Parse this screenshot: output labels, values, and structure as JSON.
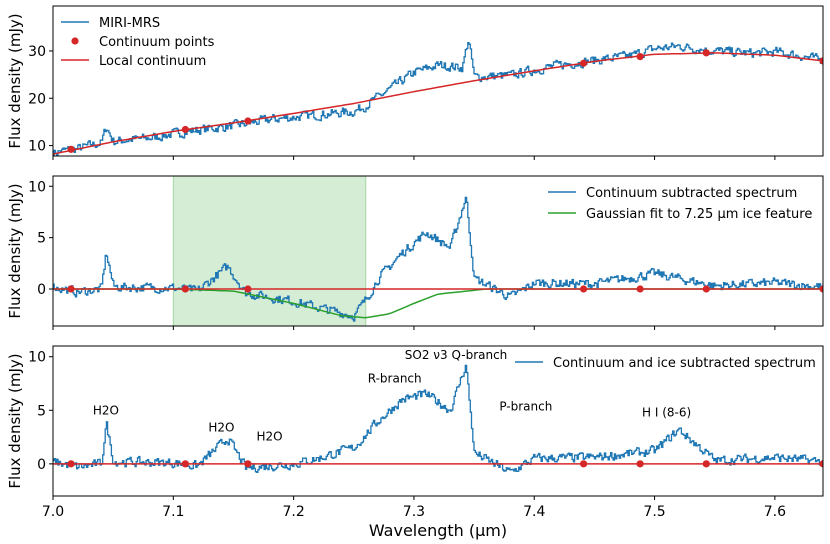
{
  "chart_data": [
    {
      "type": "line",
      "panel": "top",
      "ylabel": "Flux density (mJy)",
      "xlim": [
        7.0,
        7.64
      ],
      "ylim": [
        7.8,
        39.5
      ],
      "yticks": [
        10,
        20,
        30
      ],
      "x": [
        7.0,
        7.01,
        7.02,
        7.03,
        7.04,
        7.044,
        7.05,
        7.06,
        7.08,
        7.1,
        7.12,
        7.15,
        7.18,
        7.2,
        7.22,
        7.25,
        7.26,
        7.28,
        7.3,
        7.32,
        7.34,
        7.345,
        7.35,
        7.38,
        7.4,
        7.42,
        7.45,
        7.48,
        7.5,
        7.52,
        7.55,
        7.58,
        7.6,
        7.62,
        7.64
      ],
      "series": [
        {
          "name": "MIRI-MRS",
          "color": "#1f77b4",
          "values": [
            8.5,
            9.0,
            9.3,
            10.0,
            10.6,
            14.0,
            10.8,
            11.2,
            11.6,
            12.5,
            13.3,
            14.2,
            15.5,
            16.0,
            16.5,
            17.2,
            18.5,
            22.0,
            25.5,
            27.0,
            26.5,
            32.5,
            24.5,
            24.8,
            26.0,
            27.0,
            28.0,
            29.0,
            30.5,
            31.0,
            30.0,
            29.5,
            29.8,
            29.0,
            28.0
          ]
        },
        {
          "name": "Continuum points",
          "color": "#d62728",
          "marker": "dot",
          "x": [
            7.015,
            7.11,
            7.162,
            7.441,
            7.488,
            7.543,
            7.64
          ],
          "values": [
            9.2,
            13.4,
            15.2,
            27.4,
            28.8,
            29.6,
            27.9
          ]
        },
        {
          "name": "Local continuum",
          "color": "#d62728",
          "x": [
            7.0,
            7.05,
            7.1,
            7.15,
            7.2,
            7.25,
            7.3,
            7.35,
            7.4,
            7.45,
            7.5,
            7.55,
            7.6,
            7.64
          ],
          "values": [
            8.2,
            10.8,
            13.0,
            14.8,
            16.8,
            18.9,
            21.4,
            23.7,
            25.8,
            27.8,
            29.3,
            29.6,
            29.1,
            27.9
          ]
        }
      ],
      "legend": [
        "MIRI-MRS",
        "Continuum points",
        "Local continuum"
      ],
      "legend_position": "top-left"
    },
    {
      "type": "line",
      "panel": "middle",
      "ylabel": "Flux density (mJy)",
      "xlim": [
        7.0,
        7.64
      ],
      "ylim": [
        -3.6,
        11.0
      ],
      "yticks": [
        0,
        5,
        10
      ],
      "shaded_region": [
        7.1,
        7.26
      ],
      "x": [
        7.0,
        7.02,
        7.04,
        7.044,
        7.05,
        7.1,
        7.12,
        7.145,
        7.16,
        7.2,
        7.22,
        7.25,
        7.26,
        7.27,
        7.29,
        7.31,
        7.33,
        7.343,
        7.35,
        7.38,
        7.4,
        7.45,
        7.5,
        7.55,
        7.6,
        7.64
      ],
      "series": [
        {
          "name": "Continuum subtracted spectrum",
          "color": "#1f77b4",
          "values": [
            0.2,
            -0.3,
            0.0,
            3.6,
            0.2,
            0.1,
            -0.2,
            2.2,
            -0.4,
            -1.2,
            -1.8,
            -2.6,
            -1.0,
            1.0,
            3.5,
            5.5,
            4.0,
            9.0,
            1.0,
            -0.8,
            0.6,
            0.5,
            1.5,
            0.3,
            0.6,
            0.2
          ]
        },
        {
          "name": "Gaussian fit to 7.25 µm ice feature",
          "color": "#2ca02c",
          "x": [
            7.0,
            7.1,
            7.15,
            7.2,
            7.24,
            7.26,
            7.28,
            7.3,
            7.32,
            7.36,
            7.64
          ],
          "values": [
            0.0,
            0.0,
            -0.2,
            -1.4,
            -2.6,
            -2.8,
            -2.4,
            -1.4,
            -0.5,
            0.0,
            0.0
          ]
        },
        {
          "name": "Zero line",
          "color": "#d62728",
          "x": [
            7.0,
            7.64
          ],
          "values": [
            0,
            0
          ]
        },
        {
          "name": "Continuum points",
          "color": "#d62728",
          "marker": "dot",
          "x": [
            7.015,
            7.11,
            7.162,
            7.441,
            7.488,
            7.543,
            7.64
          ],
          "values": [
            0,
            0,
            0,
            0,
            0,
            0,
            0
          ]
        }
      ],
      "legend": [
        "Continuum subtracted spectrum",
        "Gaussian fit to 7.25 µm ice feature"
      ],
      "legend_position": "top-right"
    },
    {
      "type": "line",
      "panel": "bottom",
      "ylabel": "Flux density (mJy)",
      "xlabel": "Wavelength (µm)",
      "xlim": [
        7.0,
        7.64
      ],
      "xticks": [
        7.0,
        7.1,
        7.2,
        7.3,
        7.4,
        7.5,
        7.6
      ],
      "ylim": [
        -3.0,
        11.0
      ],
      "yticks": [
        0,
        5,
        10
      ],
      "x": [
        7.0,
        7.02,
        7.04,
        7.044,
        7.05,
        7.1,
        7.12,
        7.145,
        7.16,
        7.2,
        7.22,
        7.25,
        7.27,
        7.29,
        7.31,
        7.33,
        7.343,
        7.35,
        7.38,
        7.4,
        7.45,
        7.5,
        7.52,
        7.55,
        7.6,
        7.64
      ],
      "series": [
        {
          "name": "Continuum and ice subtracted spectrum",
          "color": "#1f77b4",
          "values": [
            0.2,
            -0.3,
            0.0,
            3.8,
            0.2,
            0.1,
            -0.2,
            2.4,
            -0.4,
            0.0,
            0.5,
            1.5,
            4.0,
            6.0,
            6.5,
            5.0,
            9.3,
            1.0,
            -0.8,
            0.5,
            0.6,
            1.2,
            3.2,
            0.3,
            0.6,
            0.2
          ]
        },
        {
          "name": "Zero line",
          "color": "#d62728",
          "x": [
            7.0,
            7.64
          ],
          "values": [
            0,
            0
          ]
        },
        {
          "name": "Continuum points",
          "color": "#d62728",
          "marker": "dot",
          "x": [
            7.015,
            7.11,
            7.162,
            7.441,
            7.488,
            7.543,
            7.64
          ],
          "values": [
            0,
            0,
            0,
            0,
            0,
            0,
            0
          ]
        }
      ],
      "legend": [
        "Continuum and ice subtracted spectrum"
      ],
      "legend_position": "top-right",
      "annotations": [
        {
          "text": "H2O",
          "x": 7.044,
          "y": 4.6
        },
        {
          "text": "H2O",
          "x": 7.14,
          "y": 3.0
        },
        {
          "text": "H2O",
          "x": 7.18,
          "y": 2.2
        },
        {
          "text": "R-branch",
          "x": 7.284,
          "y": 7.6
        },
        {
          "text": "SO2 ν3 Q-branch",
          "x": 7.335,
          "y": 9.8
        },
        {
          "text": "P-branch",
          "x": 7.393,
          "y": 5.0
        },
        {
          "text": "H I (8-6)",
          "x": 7.51,
          "y": 4.4
        }
      ]
    }
  ]
}
